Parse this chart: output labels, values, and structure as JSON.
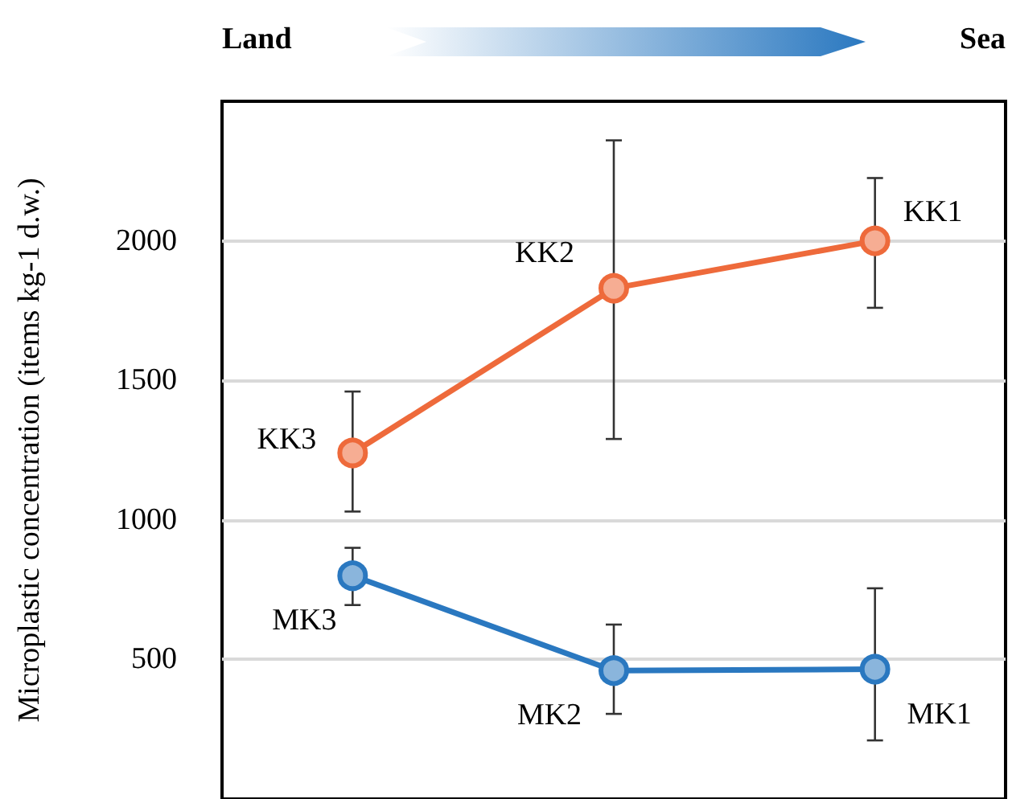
{
  "chart_data": {
    "type": "line",
    "ylabel": "Microplastic concentration (items kg-1 d.w.)",
    "annotations": [
      "Land",
      "Sea"
    ],
    "categories": [
      null,
      null,
      null
    ],
    "series": [
      {
        "color": "#ee6a3b",
        "values": [
          1240,
          1830,
          2000
        ],
        "errors": [
          [
            1030,
            1460
          ],
          [
            1290,
            2360
          ],
          [
            1760,
            2225
          ]
        ],
        "value_labels": [
          "KK3",
          "KK2",
          "KK1"
        ]
      },
      {
        "color": "#2a78c0",
        "values": [
          800,
          460,
          465
        ],
        "errors": [
          [
            695,
            900
          ],
          [
            305,
            625
          ],
          [
            210,
            755
          ]
        ],
        "value_labels": [
          "MK3",
          "MK2",
          "MK1"
        ]
      }
    ],
    "ylim": [
      0,
      2500
    ],
    "yticks": [
      500,
      1000,
      1500,
      2000
    ],
    "grid": "y",
    "marker": "circle",
    "line_style": "solid"
  }
}
